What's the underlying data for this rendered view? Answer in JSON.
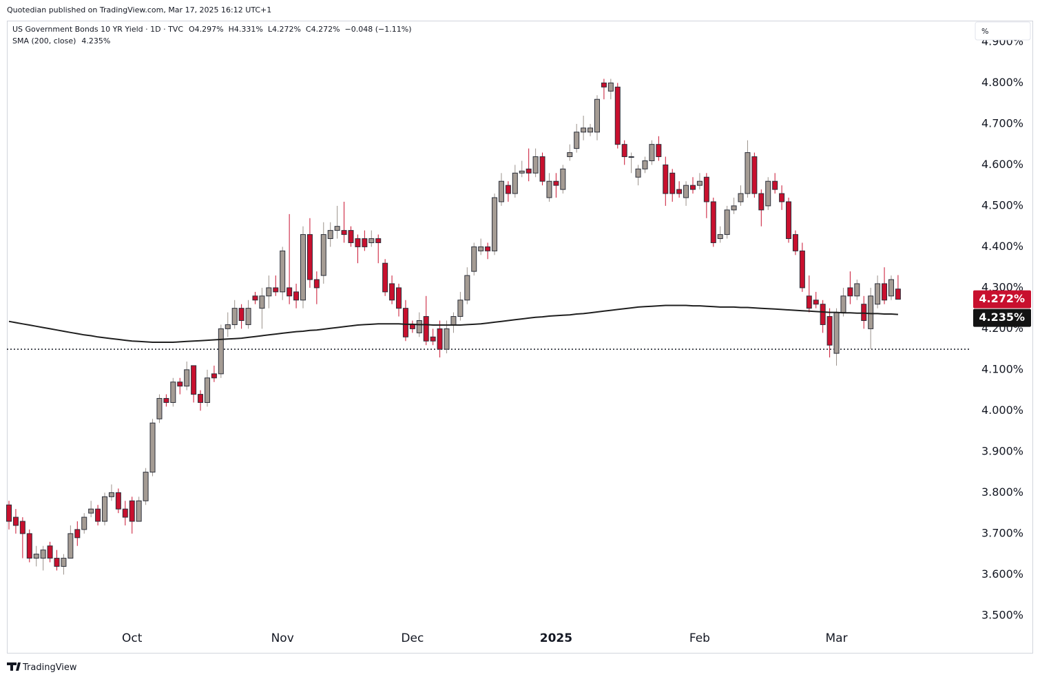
{
  "attribution": "Quotedian published on TradingView.com, Mar 17, 2025 16:12 UTC+1",
  "scale_button": "%",
  "footer": "TradingView",
  "chart_data": {
    "type": "candlestick",
    "title": "US Government Bonds 10 YR Yield · 1D · TVC",
    "legend_values": [
      "O4.297%",
      "H4.331%",
      "L4.272%",
      "C4.272%",
      "−0.048 (−1.11%)"
    ],
    "up_color": "#a59c94",
    "down_color": "#c8102e",
    "border_color": "#2a2e39",
    "categories": [
      null,
      null,
      null,
      null,
      null,
      null,
      null,
      null,
      null,
      null,
      null,
      null,
      null,
      null,
      null,
      null,
      null,
      null,
      "Oct",
      null,
      null,
      null,
      null,
      null,
      null,
      null,
      null,
      null,
      null,
      null,
      null,
      null,
      null,
      null,
      null,
      null,
      null,
      null,
      null,
      null,
      "Nov",
      null,
      null,
      null,
      null,
      null,
      null,
      null,
      null,
      null,
      null,
      null,
      null,
      null,
      null,
      null,
      null,
      null,
      null,
      "Dec",
      null,
      null,
      null,
      null,
      null,
      null,
      null,
      null,
      null,
      null,
      null,
      null,
      null,
      null,
      null,
      null,
      null,
      null,
      null,
      null,
      "2025",
      null,
      null,
      null,
      null,
      null,
      null,
      null,
      null,
      null,
      null,
      null,
      null,
      null,
      null,
      null,
      null,
      null,
      null,
      null,
      null,
      "Feb",
      null,
      null,
      null,
      null,
      null,
      null,
      null,
      null,
      null,
      null,
      null,
      null,
      null,
      null,
      null,
      null,
      null,
      null,
      null,
      "Mar",
      null,
      null,
      null,
      null,
      null,
      null,
      null,
      null,
      null
    ],
    "open": [
      3.77,
      3.74,
      3.73,
      3.7,
      3.64,
      3.64,
      3.67,
      3.64,
      3.62,
      3.64,
      3.71,
      3.71,
      3.75,
      3.76,
      3.73,
      3.79,
      3.8,
      3.76,
      3.78,
      3.73,
      3.78,
      3.85,
      3.98,
      4.03,
      4.02,
      4.07,
      4.06,
      4.11,
      4.04,
      4.02,
      4.09,
      4.09,
      4.2,
      4.21,
      4.25,
      4.21,
      4.28,
      4.25,
      4.28,
      4.3,
      4.29,
      4.3,
      4.29,
      4.27,
      4.43,
      4.32,
      4.33,
      4.42,
      4.44,
      4.44,
      4.44,
      4.42,
      4.42,
      4.41,
      4.42,
      4.36,
      4.31,
      4.3,
      4.25,
      4.21,
      4.19,
      4.23,
      4.18,
      4.2,
      4.15,
      4.21,
      4.23,
      4.27,
      4.34,
      4.39,
      4.4,
      4.39,
      4.51,
      4.55,
      4.53,
      4.58,
      4.59,
      4.58,
      4.62,
      4.52,
      4.56,
      4.54,
      4.62,
      4.64,
      4.68,
      4.68,
      4.68,
      4.8,
      4.78,
      4.79,
      4.65,
      4.62,
      4.57,
      4.59,
      4.61,
      4.65,
      4.6,
      4.58,
      4.54,
      4.52,
      4.55,
      4.55,
      4.57,
      4.51,
      4.42,
      4.43,
      4.49,
      4.51,
      4.53,
      4.62,
      4.53,
      4.5,
      4.56,
      4.53,
      4.51,
      4.43,
      4.39,
      4.28,
      4.27,
      4.26,
      4.23,
      4.14,
      4.24,
      4.3,
      4.28,
      4.26,
      4.2,
      4.26,
      4.31,
      4.28,
      4.297
    ],
    "high": [
      3.78,
      3.76,
      3.74,
      3.71,
      3.67,
      3.67,
      3.68,
      3.66,
      3.65,
      3.72,
      3.73,
      3.75,
      3.78,
      3.77,
      3.8,
      3.82,
      3.81,
      3.78,
      3.79,
      3.79,
      3.86,
      3.98,
      4.04,
      4.04,
      4.08,
      4.08,
      4.12,
      4.11,
      4.05,
      4.1,
      4.11,
      4.21,
      4.24,
      4.27,
      4.26,
      4.27,
      4.29,
      4.3,
      4.33,
      4.33,
      4.4,
      4.48,
      4.31,
      4.45,
      4.47,
      4.34,
      4.46,
      4.46,
      4.5,
      4.51,
      4.45,
      4.43,
      4.44,
      4.44,
      4.43,
      4.37,
      4.33,
      4.31,
      4.27,
      4.22,
      4.24,
      4.28,
      4.2,
      4.22,
      4.22,
      4.24,
      4.29,
      4.35,
      4.41,
      4.42,
      4.41,
      4.53,
      4.58,
      4.56,
      4.6,
      4.61,
      4.64,
      4.64,
      4.63,
      4.58,
      4.58,
      4.6,
      4.65,
      4.7,
      4.72,
      4.7,
      4.77,
      4.81,
      4.81,
      4.8,
      4.66,
      4.63,
      4.6,
      4.62,
      4.66,
      4.67,
      4.62,
      4.59,
      4.56,
      4.56,
      4.57,
      4.58,
      4.58,
      4.52,
      4.45,
      4.5,
      4.52,
      4.55,
      4.66,
      4.63,
      4.54,
      4.57,
      4.58,
      4.55,
      4.52,
      4.44,
      4.41,
      4.33,
      4.29,
      4.27,
      4.25,
      4.25,
      4.3,
      4.34,
      4.32,
      4.28,
      4.3,
      4.33,
      4.35,
      4.33,
      4.331
    ],
    "low": [
      3.71,
      3.7,
      3.64,
      3.63,
      3.62,
      3.61,
      3.63,
      3.61,
      3.6,
      3.64,
      3.67,
      3.7,
      3.74,
      3.72,
      3.72,
      3.78,
      3.75,
      3.72,
      3.7,
      3.73,
      3.77,
      3.84,
      3.97,
      4.01,
      4.01,
      4.04,
      4.05,
      4.02,
      4.0,
      4.01,
      4.07,
      4.08,
      4.18,
      4.2,
      4.2,
      4.2,
      4.26,
      4.2,
      4.25,
      4.28,
      4.27,
      4.26,
      4.25,
      4.25,
      4.3,
      4.26,
      4.31,
      4.4,
      4.42,
      4.41,
      4.4,
      4.36,
      4.39,
      4.4,
      4.36,
      4.28,
      4.26,
      4.23,
      4.17,
      4.19,
      4.18,
      4.16,
      4.16,
      4.13,
      4.14,
      4.19,
      4.22,
      4.26,
      4.33,
      4.38,
      4.37,
      4.38,
      4.5,
      4.51,
      4.52,
      4.57,
      4.56,
      4.57,
      4.55,
      4.51,
      4.52,
      4.53,
      4.61,
      4.63,
      4.66,
      4.67,
      4.66,
      4.76,
      4.76,
      4.64,
      4.6,
      4.58,
      4.55,
      4.58,
      4.6,
      4.61,
      4.5,
      4.51,
      4.52,
      4.5,
      4.53,
      4.54,
      4.47,
      4.4,
      4.41,
      4.42,
      4.48,
      4.5,
      4.52,
      4.52,
      4.45,
      4.49,
      4.53,
      4.49,
      4.41,
      4.38,
      4.29,
      4.24,
      4.25,
      4.19,
      4.13,
      4.11,
      4.23,
      4.26,
      4.27,
      4.2,
      4.15,
      4.25,
      4.26,
      4.27,
      4.272
    ],
    "close": [
      3.73,
      3.72,
      3.7,
      3.64,
      3.65,
      3.66,
      3.64,
      3.62,
      3.64,
      3.7,
      3.69,
      3.74,
      3.76,
      3.73,
      3.79,
      3.8,
      3.76,
      3.74,
      3.73,
      3.78,
      3.85,
      3.97,
      4.03,
      4.02,
      4.07,
      4.06,
      4.1,
      4.04,
      4.02,
      4.08,
      4.08,
      4.2,
      4.21,
      4.25,
      4.22,
      4.25,
      4.27,
      4.28,
      4.3,
      4.29,
      4.39,
      4.28,
      4.27,
      4.43,
      4.32,
      4.3,
      4.43,
      4.44,
      4.45,
      4.43,
      4.41,
      4.4,
      4.4,
      4.42,
      4.41,
      4.29,
      4.27,
      4.25,
      4.18,
      4.2,
      4.22,
      4.17,
      4.17,
      4.15,
      4.2,
      4.23,
      4.27,
      4.33,
      4.4,
      4.4,
      4.39,
      4.52,
      4.56,
      4.53,
      4.58,
      4.585,
      4.58,
      4.62,
      4.56,
      4.56,
      4.55,
      4.59,
      4.63,
      4.68,
      4.69,
      4.69,
      4.76,
      4.79,
      4.8,
      4.65,
      4.62,
      4.62,
      4.59,
      4.61,
      4.65,
      4.62,
      4.53,
      4.53,
      4.53,
      4.55,
      4.54,
      4.56,
      4.51,
      4.41,
      4.43,
      4.49,
      4.5,
      4.53,
      4.63,
      4.53,
      4.49,
      4.56,
      4.54,
      4.51,
      4.42,
      4.39,
      4.3,
      4.25,
      4.26,
      4.21,
      4.16,
      4.24,
      4.28,
      4.28,
      4.31,
      4.22,
      4.28,
      4.31,
      4.27,
      4.32,
      4.272
    ],
    "last_label": "4.272%",
    "series": [
      {
        "name": "SMA (200, close)",
        "color": "#1e1e1e",
        "value_label": "4.235%",
        "values": [
          4.218,
          4.215,
          4.212,
          4.209,
          4.206,
          4.203,
          4.2,
          4.197,
          4.194,
          4.191,
          4.188,
          4.185,
          4.183,
          4.18,
          4.178,
          4.176,
          4.174,
          4.172,
          4.17,
          4.169,
          4.168,
          4.167,
          4.167,
          4.167,
          4.167,
          4.168,
          4.169,
          4.17,
          4.171,
          4.172,
          4.173,
          4.174,
          4.175,
          4.176,
          4.177,
          4.179,
          4.181,
          4.183,
          4.185,
          4.187,
          4.189,
          4.191,
          4.193,
          4.194,
          4.196,
          4.197,
          4.199,
          4.201,
          4.203,
          4.205,
          4.207,
          4.209,
          4.21,
          4.211,
          4.212,
          4.212,
          4.212,
          4.212,
          4.211,
          4.211,
          4.21,
          4.21,
          4.209,
          4.209,
          4.209,
          4.209,
          4.209,
          4.21,
          4.211,
          4.212,
          4.214,
          4.216,
          4.218,
          4.22,
          4.222,
          4.224,
          4.226,
          4.228,
          4.229,
          4.231,
          4.232,
          4.233,
          4.234,
          4.236,
          4.237,
          4.239,
          4.241,
          4.243,
          4.245,
          4.247,
          4.249,
          4.251,
          4.253,
          4.254,
          4.255,
          4.256,
          4.257,
          4.257,
          4.257,
          4.257,
          4.256,
          4.256,
          4.255,
          4.254,
          4.253,
          4.253,
          4.253,
          4.252,
          4.252,
          4.251,
          4.25,
          4.249,
          4.248,
          4.247,
          4.246,
          4.245,
          4.244,
          4.243,
          4.242,
          4.241,
          4.24,
          4.24,
          4.239,
          4.239,
          4.238,
          4.238,
          4.237,
          4.237,
          4.236,
          4.236,
          4.235
        ]
      }
    ],
    "hline": 4.15,
    "ylim": [
      3.409,
      4.952
    ],
    "yticks": [
      {
        "value": 3.5,
        "label": "3.500%"
      },
      {
        "value": 3.6,
        "label": "3.600%"
      },
      {
        "value": 3.7,
        "label": "3.700%"
      },
      {
        "value": 3.8,
        "label": "3.800%"
      },
      {
        "value": 3.9,
        "label": "3.900%"
      },
      {
        "value": 4.0,
        "label": "4.000%"
      },
      {
        "value": 4.1,
        "label": "4.100%"
      },
      {
        "value": 4.2,
        "label": "4.200%"
      },
      {
        "value": 4.3,
        "label": "4.300%"
      },
      {
        "value": 4.4,
        "label": "4.400%"
      },
      {
        "value": 4.5,
        "label": "4.500%"
      },
      {
        "value": 4.6,
        "label": "4.600%"
      },
      {
        "value": 4.7,
        "label": "4.700%"
      },
      {
        "value": 4.8,
        "label": "4.800%"
      },
      {
        "value": 4.9,
        "label": "4.900%"
      }
    ]
  }
}
